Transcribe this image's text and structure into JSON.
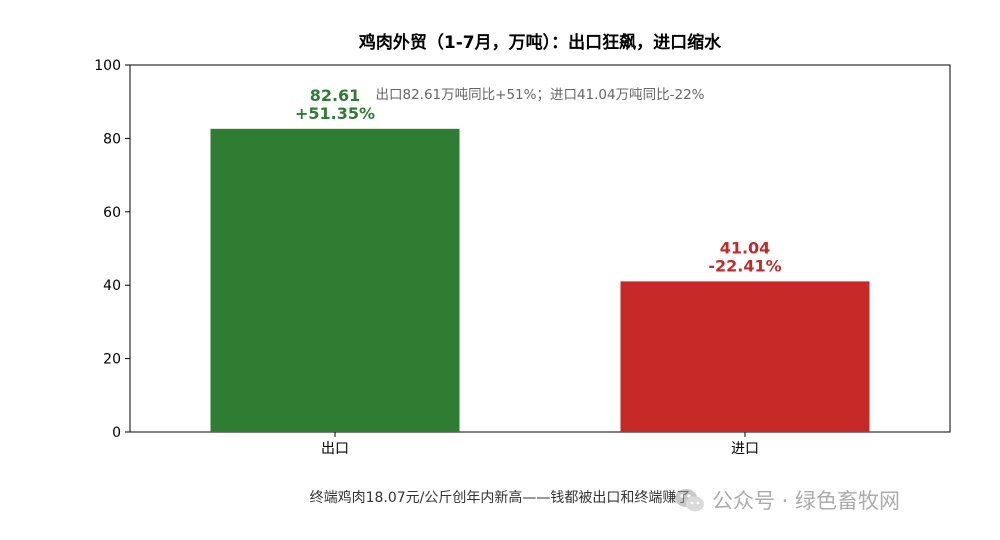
{
  "chart_data": {
    "type": "bar",
    "title": "鸡肉外贸（1-7月，万吨）：出口狂飙，进口缩水",
    "categories": [
      "出口",
      "进口"
    ],
    "values": [
      82.61,
      41.04
    ],
    "value_labels": [
      "82.61",
      "41.04"
    ],
    "change_labels": [
      "+51.35%",
      "-22.41%"
    ],
    "bar_colors": [
      "#2e7d32",
      "#c62828"
    ],
    "ylim": [
      0,
      100
    ],
    "yticks": [
      0,
      20,
      40,
      60,
      80,
      100
    ],
    "ytick_labels": [
      "0",
      "20",
      "40",
      "60",
      "80",
      "100"
    ],
    "annotation": "出口82.61万吨同比+51%；进口41.04万吨同比-22%",
    "caption": "终端鸡肉18.07元/公斤创年内新高——钱都被出口和终端赚了",
    "grid": false
  },
  "watermark": {
    "text": "公众号 · 绿色畜牧网",
    "icon": "wechat-icon"
  },
  "colors": {
    "annotation": "#666666",
    "axis": "#000000",
    "watermark": "#9e9e9e"
  }
}
